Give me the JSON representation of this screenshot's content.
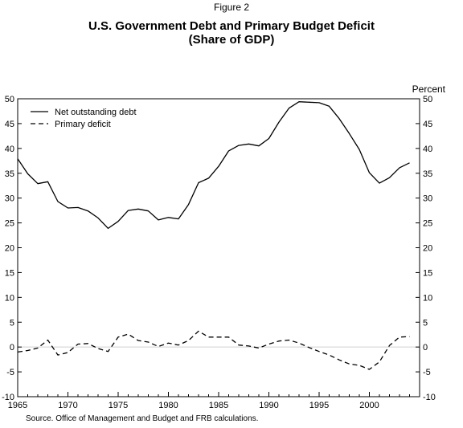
{
  "figure_label": "Figure 2",
  "title_line1": "U.S. Government Debt and Primary Budget Deficit",
  "title_line2": "(Share of GDP)",
  "source_note": "Source. Office of Management and Budget and FRB calculations.",
  "colors": {
    "line": "#000000",
    "zero_line": "#d0d0d0",
    "axis": "#000000"
  },
  "chart_data": {
    "type": "line",
    "title": "U.S. Government Debt and Primary Budget Deficit (Share of GDP)",
    "ylabel_right": "Percent",
    "xlim": [
      1965,
      2005
    ],
    "ylim": [
      -10,
      50
    ],
    "x_ticks": [
      1965,
      1970,
      1975,
      1980,
      1985,
      1990,
      1995,
      2000
    ],
    "y_ticks": [
      -10,
      -5,
      0,
      5,
      10,
      15,
      20,
      25,
      30,
      35,
      40,
      45,
      50
    ],
    "legend_position": "top-left",
    "grid": false,
    "series": [
      {
        "name": "Net outstanding debt",
        "style": "solid",
        "x": [
          1965,
          1966,
          1967,
          1968,
          1969,
          1970,
          1971,
          1972,
          1973,
          1974,
          1975,
          1976,
          1977,
          1978,
          1979,
          1980,
          1981,
          1982,
          1983,
          1984,
          1985,
          1986,
          1987,
          1988,
          1989,
          1990,
          1991,
          1992,
          1993,
          1994,
          1995,
          1996,
          1997,
          1998,
          1999,
          2000,
          2001,
          2002,
          2003,
          2004
        ],
        "values": [
          37.9,
          34.9,
          32.9,
          33.3,
          29.3,
          28.0,
          28.1,
          27.4,
          26.0,
          23.9,
          25.3,
          27.5,
          27.8,
          27.4,
          25.6,
          26.1,
          25.8,
          28.7,
          33.1,
          34.0,
          36.4,
          39.5,
          40.6,
          40.9,
          40.5,
          42.0,
          45.3,
          48.1,
          49.4,
          49.3,
          49.2,
          48.5,
          46.0,
          43.0,
          39.8,
          35.1,
          33.0,
          34.1,
          36.1,
          37.1
        ]
      },
      {
        "name": "Primary deficit",
        "style": "dashed",
        "x": [
          1965,
          1966,
          1967,
          1968,
          1969,
          1970,
          1971,
          1972,
          1973,
          1974,
          1975,
          1976,
          1977,
          1978,
          1979,
          1980,
          1981,
          1982,
          1983,
          1984,
          1985,
          1986,
          1987,
          1988,
          1989,
          1990,
          1991,
          1992,
          1993,
          1994,
          1995,
          1996,
          1997,
          1998,
          1999,
          2000,
          2001,
          2002,
          2003,
          2004
        ],
        "values": [
          -1.0,
          -0.7,
          -0.2,
          1.4,
          -1.6,
          -1.1,
          0.6,
          0.7,
          -0.3,
          -0.9,
          2.0,
          2.6,
          1.3,
          1.0,
          0.1,
          0.8,
          0.4,
          1.3,
          3.2,
          2.0,
          2.0,
          2.0,
          0.4,
          0.2,
          -0.2,
          0.6,
          1.2,
          1.4,
          0.8,
          -0.1,
          -0.9,
          -1.6,
          -2.6,
          -3.4,
          -3.7,
          -4.5,
          -3.0,
          0.3,
          2.0,
          2.1
        ]
      }
    ]
  }
}
